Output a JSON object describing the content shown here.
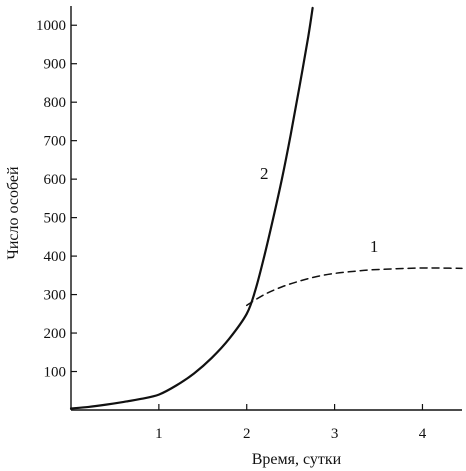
{
  "chart_data": {
    "type": "line",
    "xlabel": "Время, сутки",
    "ylabel": "Число особей",
    "xlim": [
      0,
      4.45
    ],
    "ylim": [
      0,
      1050
    ],
    "x_ticks": [
      "1",
      "2",
      "3",
      "4"
    ],
    "y_ticks": [
      "100",
      "200",
      "300",
      "400",
      "500",
      "600",
      "700",
      "800",
      "900",
      "1000"
    ],
    "grid": false,
    "legend": "none",
    "series": [
      {
        "label": "2",
        "style": "solid",
        "color": "#111111",
        "x": [
          0,
          0.2,
          0.4,
          0.6,
          0.8,
          1.0,
          1.2,
          1.4,
          1.6,
          1.8,
          2.0,
          2.1,
          2.2,
          2.3,
          2.4,
          2.5,
          2.6,
          2.7,
          2.75
        ],
        "y": [
          4,
          8,
          14,
          21,
          29,
          40,
          64,
          95,
          135,
          185,
          250,
          313,
          400,
          497,
          600,
          715,
          840,
          970,
          1045
        ]
      },
      {
        "label": "1",
        "style": "dashed",
        "color": "#111111",
        "x": [
          2.0,
          2.2,
          2.4,
          2.6,
          2.8,
          3.0,
          3.2,
          3.4,
          3.6,
          3.8,
          4.0,
          4.2,
          4.45
        ],
        "y": [
          272,
          300,
          320,
          335,
          347,
          355,
          360,
          364,
          366,
          368,
          369,
          369,
          368
        ]
      }
    ],
    "label_positions": [
      {
        "text": "2",
        "x": 2.2,
        "y": 600
      },
      {
        "text": "1",
        "x": 3.45,
        "y": 410
      }
    ]
  }
}
